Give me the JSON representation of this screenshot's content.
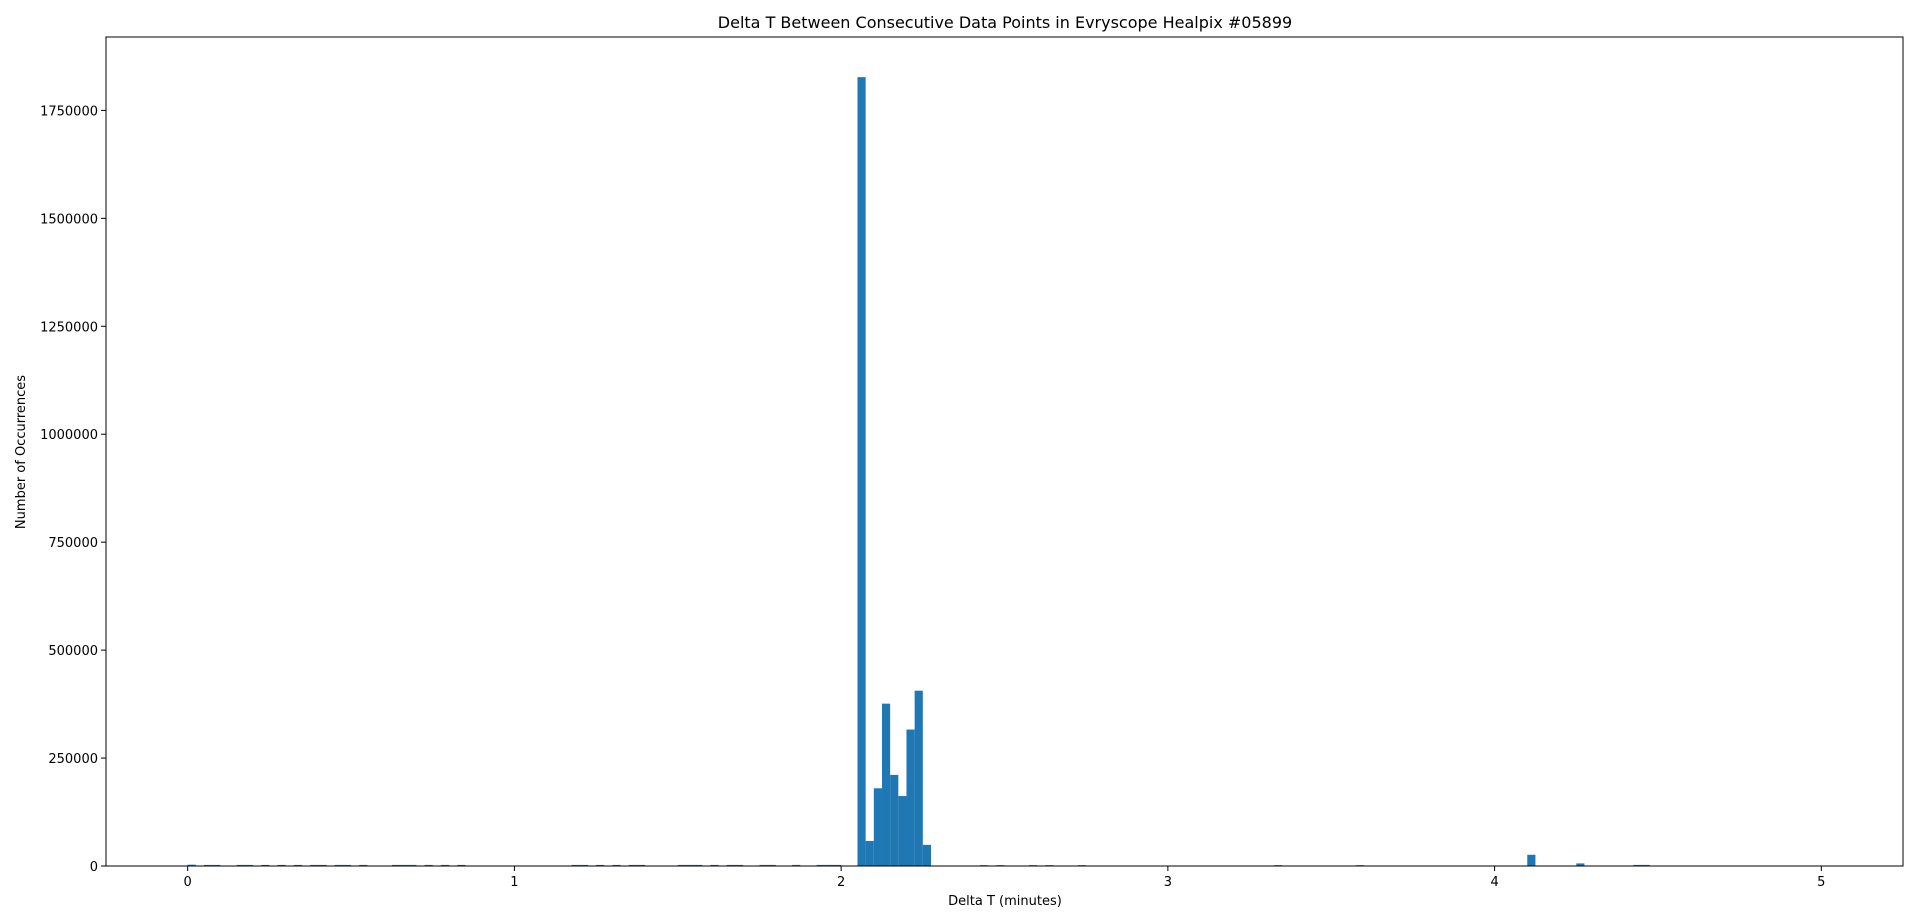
{
  "chart_data": {
    "type": "bar",
    "title": "Delta T Between Consecutive Data Points in Evryscope Healpix #05899",
    "xlabel": "Delta T (minutes)",
    "ylabel": "Number of Occurrences",
    "xlim": [
      -0.25,
      5.25
    ],
    "ylim": [
      0,
      1920000
    ],
    "xticks": [
      0,
      1,
      2,
      3,
      4,
      5
    ],
    "xtick_labels": [
      "0",
      "1",
      "2",
      "3",
      "4",
      "5"
    ],
    "yticks": [
      0,
      250000,
      500000,
      750000,
      1000000,
      1250000,
      1500000,
      1750000
    ],
    "ytick_labels": [
      "0",
      "250000",
      "500000",
      "750000",
      "1000000",
      "1250000",
      "1500000",
      "1750000"
    ],
    "bin_width": 0.025,
    "color": "#1f77b4",
    "grid": false,
    "bins": [
      {
        "x": 0.0,
        "value": 3000
      },
      {
        "x": 0.05,
        "value": 2500
      },
      {
        "x": 0.075,
        "value": 2500
      },
      {
        "x": 0.15,
        "value": 2500
      },
      {
        "x": 0.175,
        "value": 2500
      },
      {
        "x": 0.225,
        "value": 2500
      },
      {
        "x": 0.275,
        "value": 2500
      },
      {
        "x": 0.325,
        "value": 2500
      },
      {
        "x": 0.375,
        "value": 2500
      },
      {
        "x": 0.4,
        "value": 2500
      },
      {
        "x": 0.45,
        "value": 2500
      },
      {
        "x": 0.475,
        "value": 2500
      },
      {
        "x": 0.525,
        "value": 2500
      },
      {
        "x": 0.625,
        "value": 2500
      },
      {
        "x": 0.65,
        "value": 2500
      },
      {
        "x": 0.675,
        "value": 2500
      },
      {
        "x": 0.725,
        "value": 2500
      },
      {
        "x": 0.775,
        "value": 2500
      },
      {
        "x": 0.825,
        "value": 2500
      },
      {
        "x": 1.175,
        "value": 2500
      },
      {
        "x": 1.2,
        "value": 2500
      },
      {
        "x": 1.25,
        "value": 2500
      },
      {
        "x": 1.3,
        "value": 2500
      },
      {
        "x": 1.35,
        "value": 2500
      },
      {
        "x": 1.375,
        "value": 2500
      },
      {
        "x": 1.5,
        "value": 2500
      },
      {
        "x": 1.525,
        "value": 2500
      },
      {
        "x": 1.55,
        "value": 2500
      },
      {
        "x": 1.6,
        "value": 2500
      },
      {
        "x": 1.65,
        "value": 2500
      },
      {
        "x": 1.675,
        "value": 2500
      },
      {
        "x": 1.75,
        "value": 2500
      },
      {
        "x": 1.775,
        "value": 2500
      },
      {
        "x": 1.85,
        "value": 2500
      },
      {
        "x": 1.925,
        "value": 2500
      },
      {
        "x": 1.95,
        "value": 2500
      },
      {
        "x": 1.975,
        "value": 2500
      },
      {
        "x": 2.05,
        "value": 1827000
      },
      {
        "x": 2.075,
        "value": 58000
      },
      {
        "x": 2.1,
        "value": 180000
      },
      {
        "x": 2.125,
        "value": 376000
      },
      {
        "x": 2.15,
        "value": 211000
      },
      {
        "x": 2.175,
        "value": 162000
      },
      {
        "x": 2.2,
        "value": 316000
      },
      {
        "x": 2.225,
        "value": 406000
      },
      {
        "x": 2.25,
        "value": 49000
      },
      {
        "x": 2.425,
        "value": 2000
      },
      {
        "x": 2.475,
        "value": 2000
      },
      {
        "x": 2.575,
        "value": 2000
      },
      {
        "x": 2.625,
        "value": 2000
      },
      {
        "x": 2.725,
        "value": 2000
      },
      {
        "x": 3.325,
        "value": 2000
      },
      {
        "x": 3.575,
        "value": 2000
      },
      {
        "x": 4.1,
        "value": 26000
      },
      {
        "x": 4.25,
        "value": 6000
      },
      {
        "x": 4.425,
        "value": 2500
      },
      {
        "x": 4.45,
        "value": 2500
      }
    ]
  }
}
